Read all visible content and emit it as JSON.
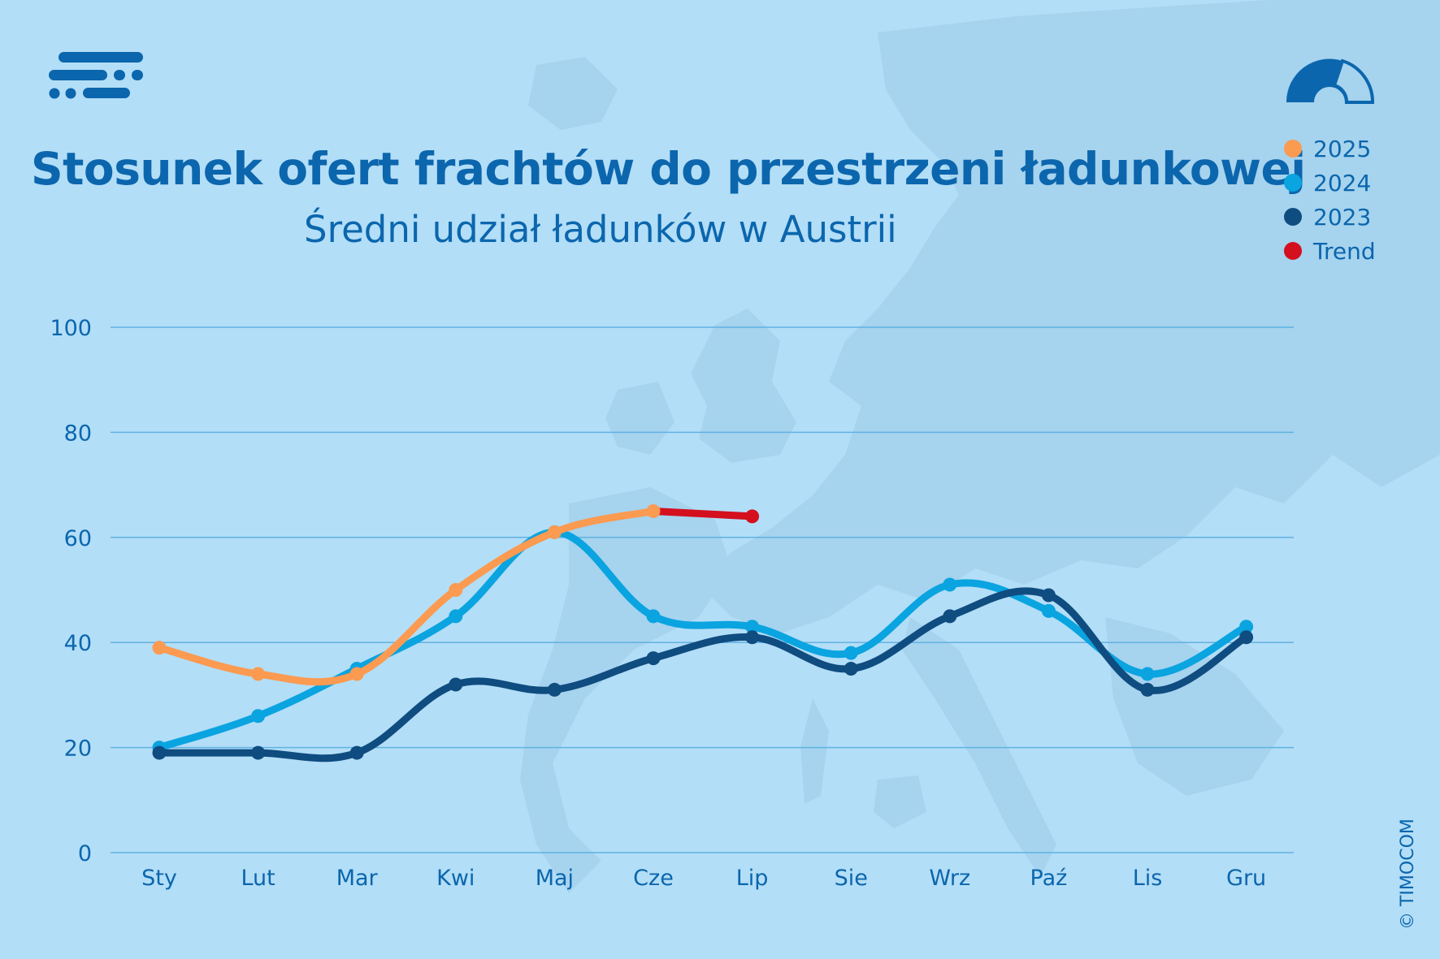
{
  "header": {
    "title": "Stosunek ofert frachtów do przestrzeni ładunkowej",
    "subtitle": "Średni udział ładunków w Austrii"
  },
  "legend": [
    {
      "label": "2025",
      "color": "#fb9a51"
    },
    {
      "label": "2024",
      "color": "#0aa4e0"
    },
    {
      "label": "2023",
      "color": "#0f4c80"
    },
    {
      "label": "Trend",
      "color": "#d40f1e"
    }
  ],
  "copyright": "© TIMOCOM",
  "chart_data": {
    "type": "line",
    "title": "Stosunek ofert frachtów do przestrzeni ładunkowej",
    "subtitle": "Średni udział ładunków w Austrii",
    "xlabel": "",
    "ylabel": "",
    "categories": [
      "Sty",
      "Lut",
      "Mar",
      "Kwi",
      "Maj",
      "Cze",
      "Lip",
      "Sie",
      "Wrz",
      "Paź",
      "Lis",
      "Gru"
    ],
    "ylim": [
      0,
      100
    ],
    "yticks": [
      0,
      20,
      40,
      60,
      80,
      100
    ],
    "grid": true,
    "legend_position": "top-right",
    "series": [
      {
        "name": "2023",
        "color": "#0f4c80",
        "values": [
          19,
          19,
          19,
          32,
          31,
          37,
          41,
          35,
          45,
          49,
          31,
          41
        ]
      },
      {
        "name": "2024",
        "color": "#0aa4e0",
        "values": [
          20,
          26,
          35,
          45,
          61,
          45,
          43,
          38,
          51,
          46,
          34,
          43
        ]
      },
      {
        "name": "2025",
        "color": "#fb9a51",
        "values": [
          39,
          34,
          34,
          50,
          61,
          65,
          null,
          null,
          null,
          null,
          null,
          null
        ]
      },
      {
        "name": "Trend",
        "color": "#d40f1e",
        "values": [
          null,
          null,
          null,
          null,
          null,
          65,
          64,
          null,
          null,
          null,
          null,
          null
        ]
      }
    ]
  }
}
